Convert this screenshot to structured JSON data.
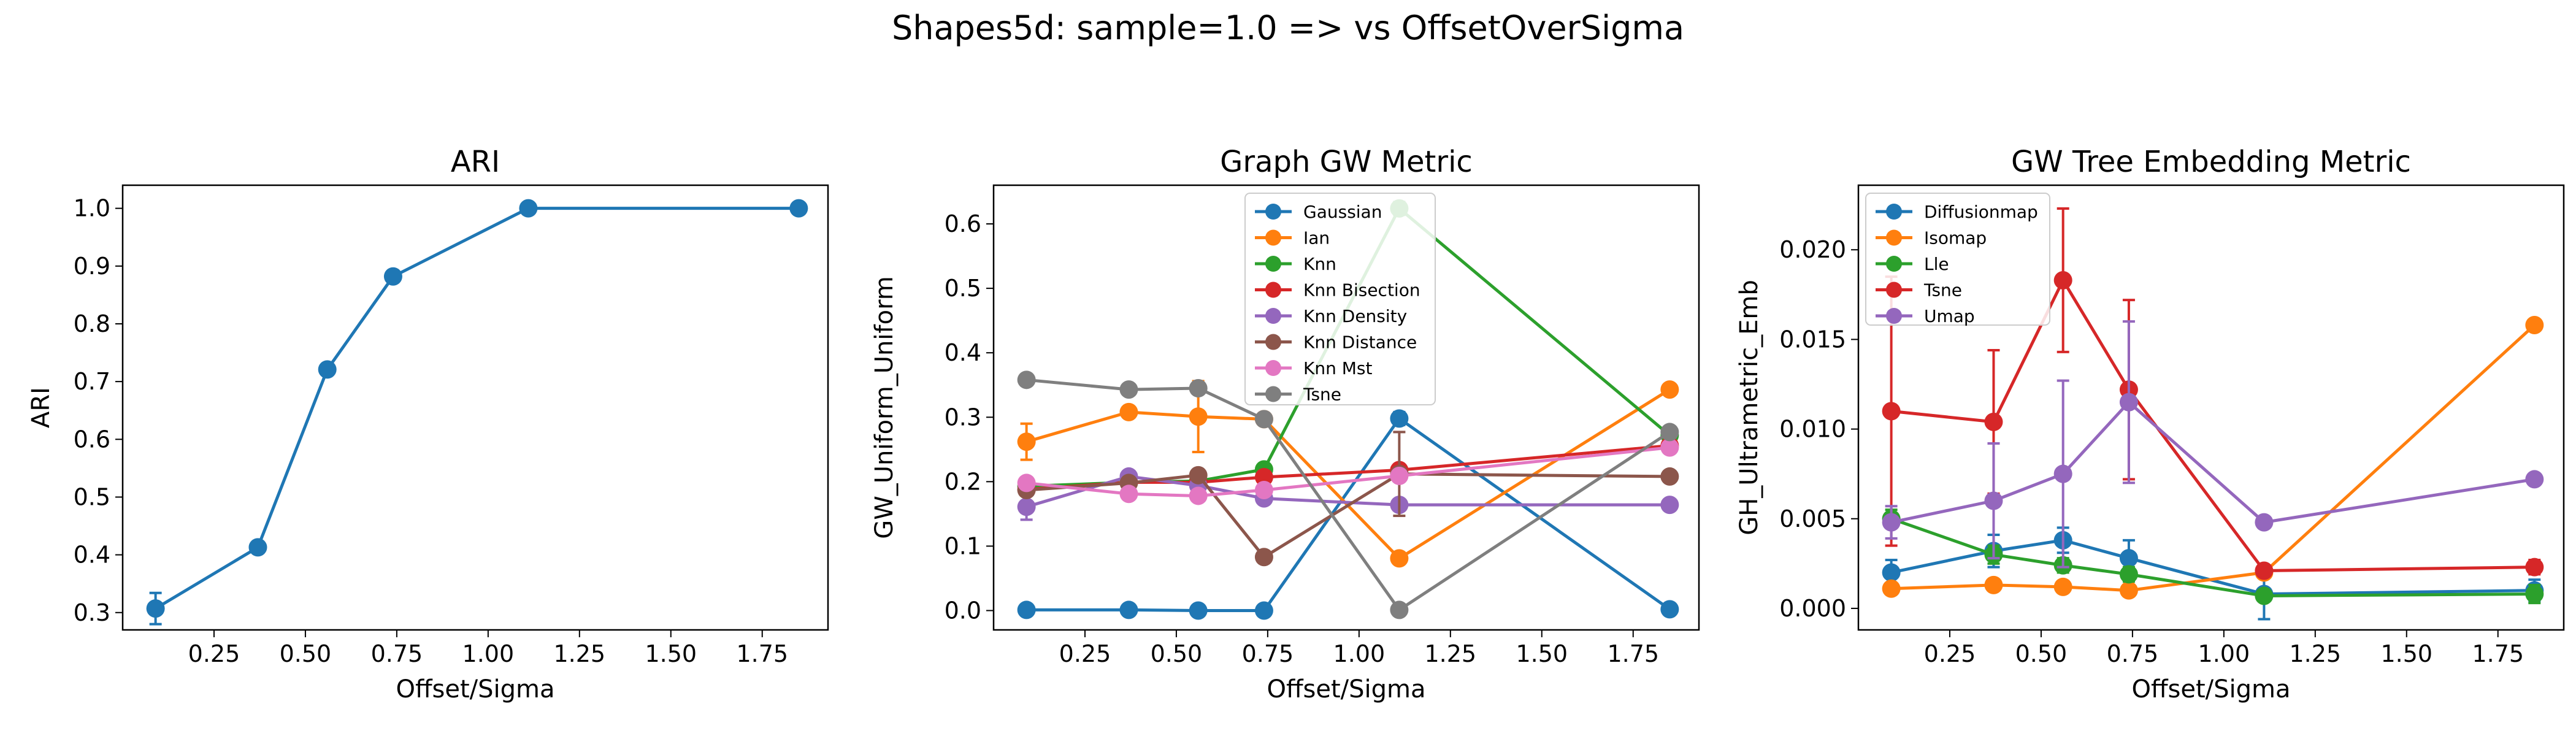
{
  "suptitle": "Shapes5d: sample=1.0 => vs OffsetOverSigma",
  "chart_data": [
    {
      "type": "line",
      "title": "ARI",
      "xlabel": "Offset/Sigma",
      "ylabel": "ARI",
      "xlim": [
        0.0,
        1.93
      ],
      "ylim": [
        0.27,
        1.04
      ],
      "xticks": [
        0.25,
        0.5,
        0.75,
        1.0,
        1.25,
        1.5,
        1.75
      ],
      "xtick_labels": [
        "0.25",
        "0.50",
        "0.75",
        "1.00",
        "1.25",
        "1.50",
        "1.75"
      ],
      "yticks": [
        0.3,
        0.4,
        0.5,
        0.6,
        0.7,
        0.8,
        0.9,
        1.0
      ],
      "ytick_labels": [
        "0.3",
        "0.4",
        "0.5",
        "0.6",
        "0.7",
        "0.8",
        "0.9",
        "1.0"
      ],
      "legend": null,
      "x": [
        0.09,
        0.37,
        0.56,
        0.74,
        1.11,
        1.85
      ],
      "series": [
        {
          "name": "",
          "color": "#1f77b4",
          "values": [
            0.307,
            0.413,
            0.721,
            0.882,
            1.0,
            1.0
          ],
          "errors": [
            0.027,
            0.004,
            0.004,
            0.004,
            0.002,
            0.002
          ]
        }
      ]
    },
    {
      "type": "line",
      "title": "Graph GW Metric",
      "xlabel": "Offset/Sigma",
      "ylabel": "GW_Uniform_Uniform",
      "xlim": [
        0.0,
        1.93
      ],
      "ylim": [
        -0.03,
        0.66
      ],
      "xticks": [
        0.25,
        0.5,
        0.75,
        1.0,
        1.25,
        1.5,
        1.75
      ],
      "xtick_labels": [
        "0.25",
        "0.50",
        "0.75",
        "1.00",
        "1.25",
        "1.50",
        "1.75"
      ],
      "yticks": [
        0.0,
        0.1,
        0.2,
        0.3,
        0.4,
        0.5,
        0.6
      ],
      "ytick_labels": [
        "0.0",
        "0.1",
        "0.2",
        "0.3",
        "0.4",
        "0.5",
        "0.6"
      ],
      "legend": "upper-center",
      "x": [
        0.09,
        0.37,
        0.56,
        0.74,
        1.11,
        1.85
      ],
      "series": [
        {
          "name": "Gaussian",
          "color": "#1f77b4",
          "values": [
            0.001,
            0.001,
            0.0,
            0.0,
            0.298,
            0.002
          ],
          "errors": [
            0,
            0,
            0,
            0,
            0.01,
            0
          ]
        },
        {
          "name": "Ian",
          "color": "#ff7f0e",
          "values": [
            0.262,
            0.308,
            0.301,
            0.297,
            0.081,
            0.343
          ],
          "errors": [
            0.028,
            0.005,
            0.055,
            0.005,
            0.005,
            0.005
          ]
        },
        {
          "name": "Knn",
          "color": "#2ca02c",
          "values": [
            0.193,
            0.199,
            0.201,
            0.219,
            0.624,
            0.272
          ],
          "errors": [
            0.005,
            0.005,
            0.005,
            0.005,
            0.01,
            0.005
          ]
        },
        {
          "name": "Knn Bisection",
          "color": "#d62728",
          "values": [
            0.188,
            0.199,
            0.199,
            0.207,
            0.218,
            0.256
          ],
          "errors": [
            0.005,
            0.005,
            0.005,
            0.005,
            0.005,
            0.005
          ]
        },
        {
          "name": "Knn Density",
          "color": "#9467bd",
          "values": [
            0.161,
            0.208,
            0.194,
            0.174,
            0.164,
            0.164
          ],
          "errors": [
            0.02,
            0.005,
            0.005,
            0.005,
            0.005,
            0.005
          ]
        },
        {
          "name": "Knn Distance",
          "color": "#8c564b",
          "values": [
            0.187,
            0.198,
            0.21,
            0.083,
            0.212,
            0.208
          ],
          "errors": [
            0.005,
            0.005,
            0.005,
            0.005,
            0.065,
            0.005
          ]
        },
        {
          "name": "Knn Mst",
          "color": "#e377c2",
          "values": [
            0.198,
            0.181,
            0.178,
            0.187,
            0.209,
            0.253
          ],
          "errors": [
            0.005,
            0.005,
            0.005,
            0.005,
            0.005,
            0.005
          ]
        },
        {
          "name": "Tsne",
          "color": "#7f7f7f",
          "values": [
            0.358,
            0.343,
            0.345,
            0.297,
            0.001,
            0.277
          ],
          "errors": [
            0.005,
            0.005,
            0.005,
            0.005,
            0.005,
            0.005
          ]
        }
      ]
    },
    {
      "type": "line",
      "title": "GW Tree Embedding Metric",
      "xlabel": "Offset/Sigma",
      "ylabel": "GH_Ultrametric_Emb",
      "xlim": [
        0.0,
        1.93
      ],
      "ylim": [
        -0.0012,
        0.0236
      ],
      "xticks": [
        0.25,
        0.5,
        0.75,
        1.0,
        1.25,
        1.5,
        1.75
      ],
      "xtick_labels": [
        "0.25",
        "0.50",
        "0.75",
        "1.00",
        "1.25",
        "1.50",
        "1.75"
      ],
      "yticks": [
        0.0,
        0.005,
        0.01,
        0.015,
        0.02
      ],
      "ytick_labels": [
        "0.000",
        "0.005",
        "0.010",
        "0.015",
        "0.020"
      ],
      "legend": "upper-left",
      "x": [
        0.09,
        0.37,
        0.56,
        0.74,
        1.11,
        1.85
      ],
      "series": [
        {
          "name": "Diffusionmap",
          "color": "#1f77b4",
          "values": [
            0.002,
            0.0032,
            0.0038,
            0.0028,
            0.0008,
            0.001
          ],
          "errors": [
            0.0007,
            0.0009,
            0.0007,
            0.001,
            0.0014,
            0.0006
          ]
        },
        {
          "name": "Isomap",
          "color": "#ff7f0e",
          "values": [
            0.0011,
            0.0013,
            0.0012,
            0.001,
            0.002,
            0.0158
          ],
          "errors": [
            0.0002,
            0.0002,
            0.0002,
            0.0002,
            0.0003,
            0.0003
          ]
        },
        {
          "name": "Lle",
          "color": "#2ca02c",
          "values": [
            0.005,
            0.003,
            0.0024,
            0.0019,
            0.0007,
            0.0008
          ],
          "errors": [
            0.0005,
            0.0005,
            0.0004,
            0.0004,
            0.0002,
            0.0005
          ]
        },
        {
          "name": "Tsne",
          "color": "#d62728",
          "values": [
            0.011,
            0.0104,
            0.0183,
            0.0122,
            0.0021,
            0.0023
          ],
          "errors": [
            0.0075,
            0.004,
            0.004,
            0.005,
            0.0003,
            0.0004
          ]
        },
        {
          "name": "Umap",
          "color": "#9467bd",
          "values": [
            0.0048,
            0.006,
            0.0075,
            0.0115,
            0.0048,
            0.0072
          ],
          "errors": [
            0.0009,
            0.0032,
            0.0052,
            0.0045,
            0.0002,
            0.0003
          ]
        }
      ]
    }
  ]
}
